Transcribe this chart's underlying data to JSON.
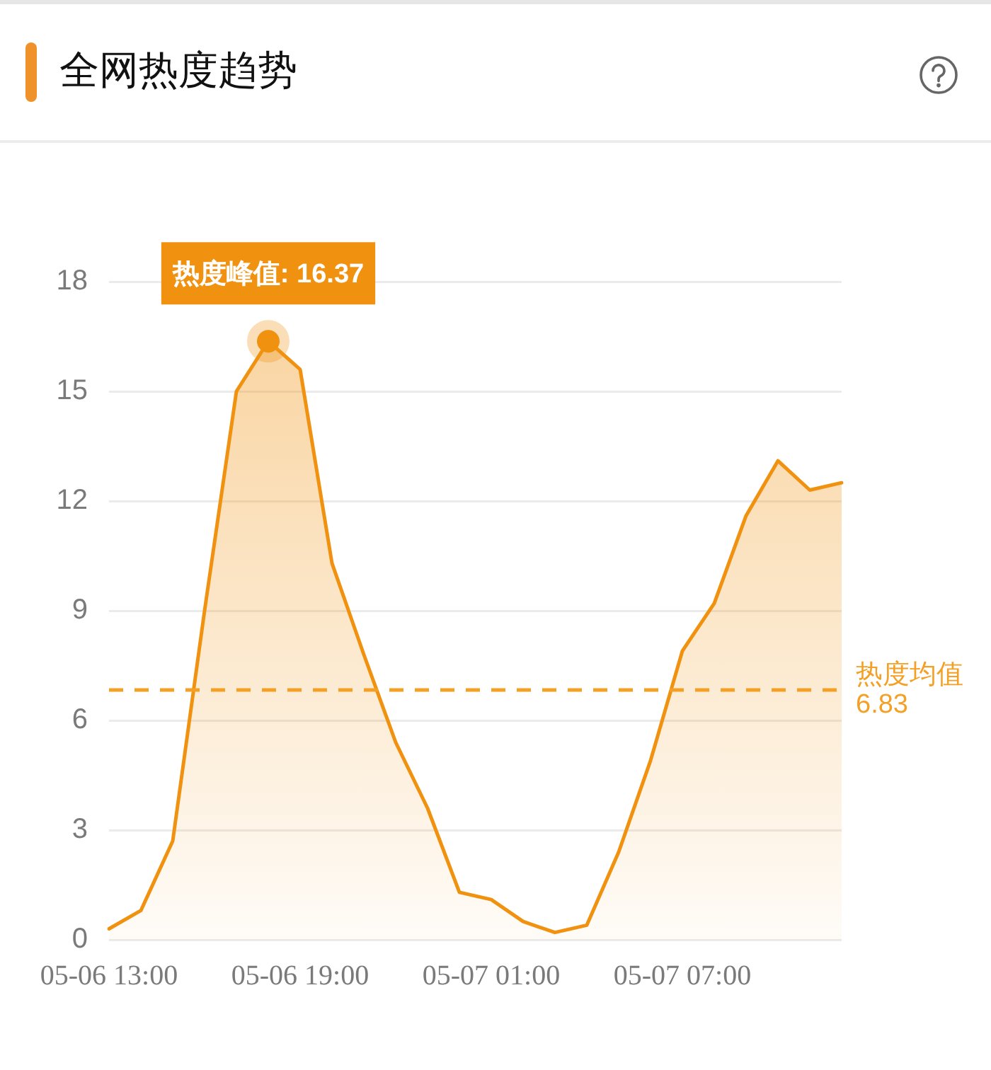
{
  "chart_data": {
    "type": "area",
    "title": "全网热度趋势",
    "categories": [
      "05-06 13:00",
      null,
      null,
      null,
      null,
      null,
      "05-06 19:00",
      null,
      null,
      null,
      null,
      null,
      "05-07 01:00",
      null,
      null,
      null,
      null,
      null,
      "05-07 07:00",
      null,
      null,
      null,
      null,
      null
    ],
    "values": [
      0.3,
      0.8,
      2.7,
      9.0,
      15.0,
      16.37,
      15.6,
      10.3,
      7.8,
      5.4,
      3.6,
      1.3,
      1.1,
      0.5,
      0.2,
      0.4,
      2.4,
      4.9,
      7.9,
      9.2,
      11.6,
      13.1,
      12.3,
      12.5
    ],
    "color": "#f0920f",
    "ylim": [
      0,
      18
    ],
    "yticks": [
      0,
      3,
      6,
      9,
      12,
      15,
      18
    ],
    "grid": "y",
    "marker": "none",
    "ref_lines": [
      {
        "axis": "y",
        "value": 6.83,
        "label": "热度均值 6.83",
        "color": "#f4a024",
        "line_style": "dashed"
      }
    ],
    "annotations": [
      {
        "text": "热度峰值: 16.37",
        "y": 16.37
      }
    ]
  }
}
